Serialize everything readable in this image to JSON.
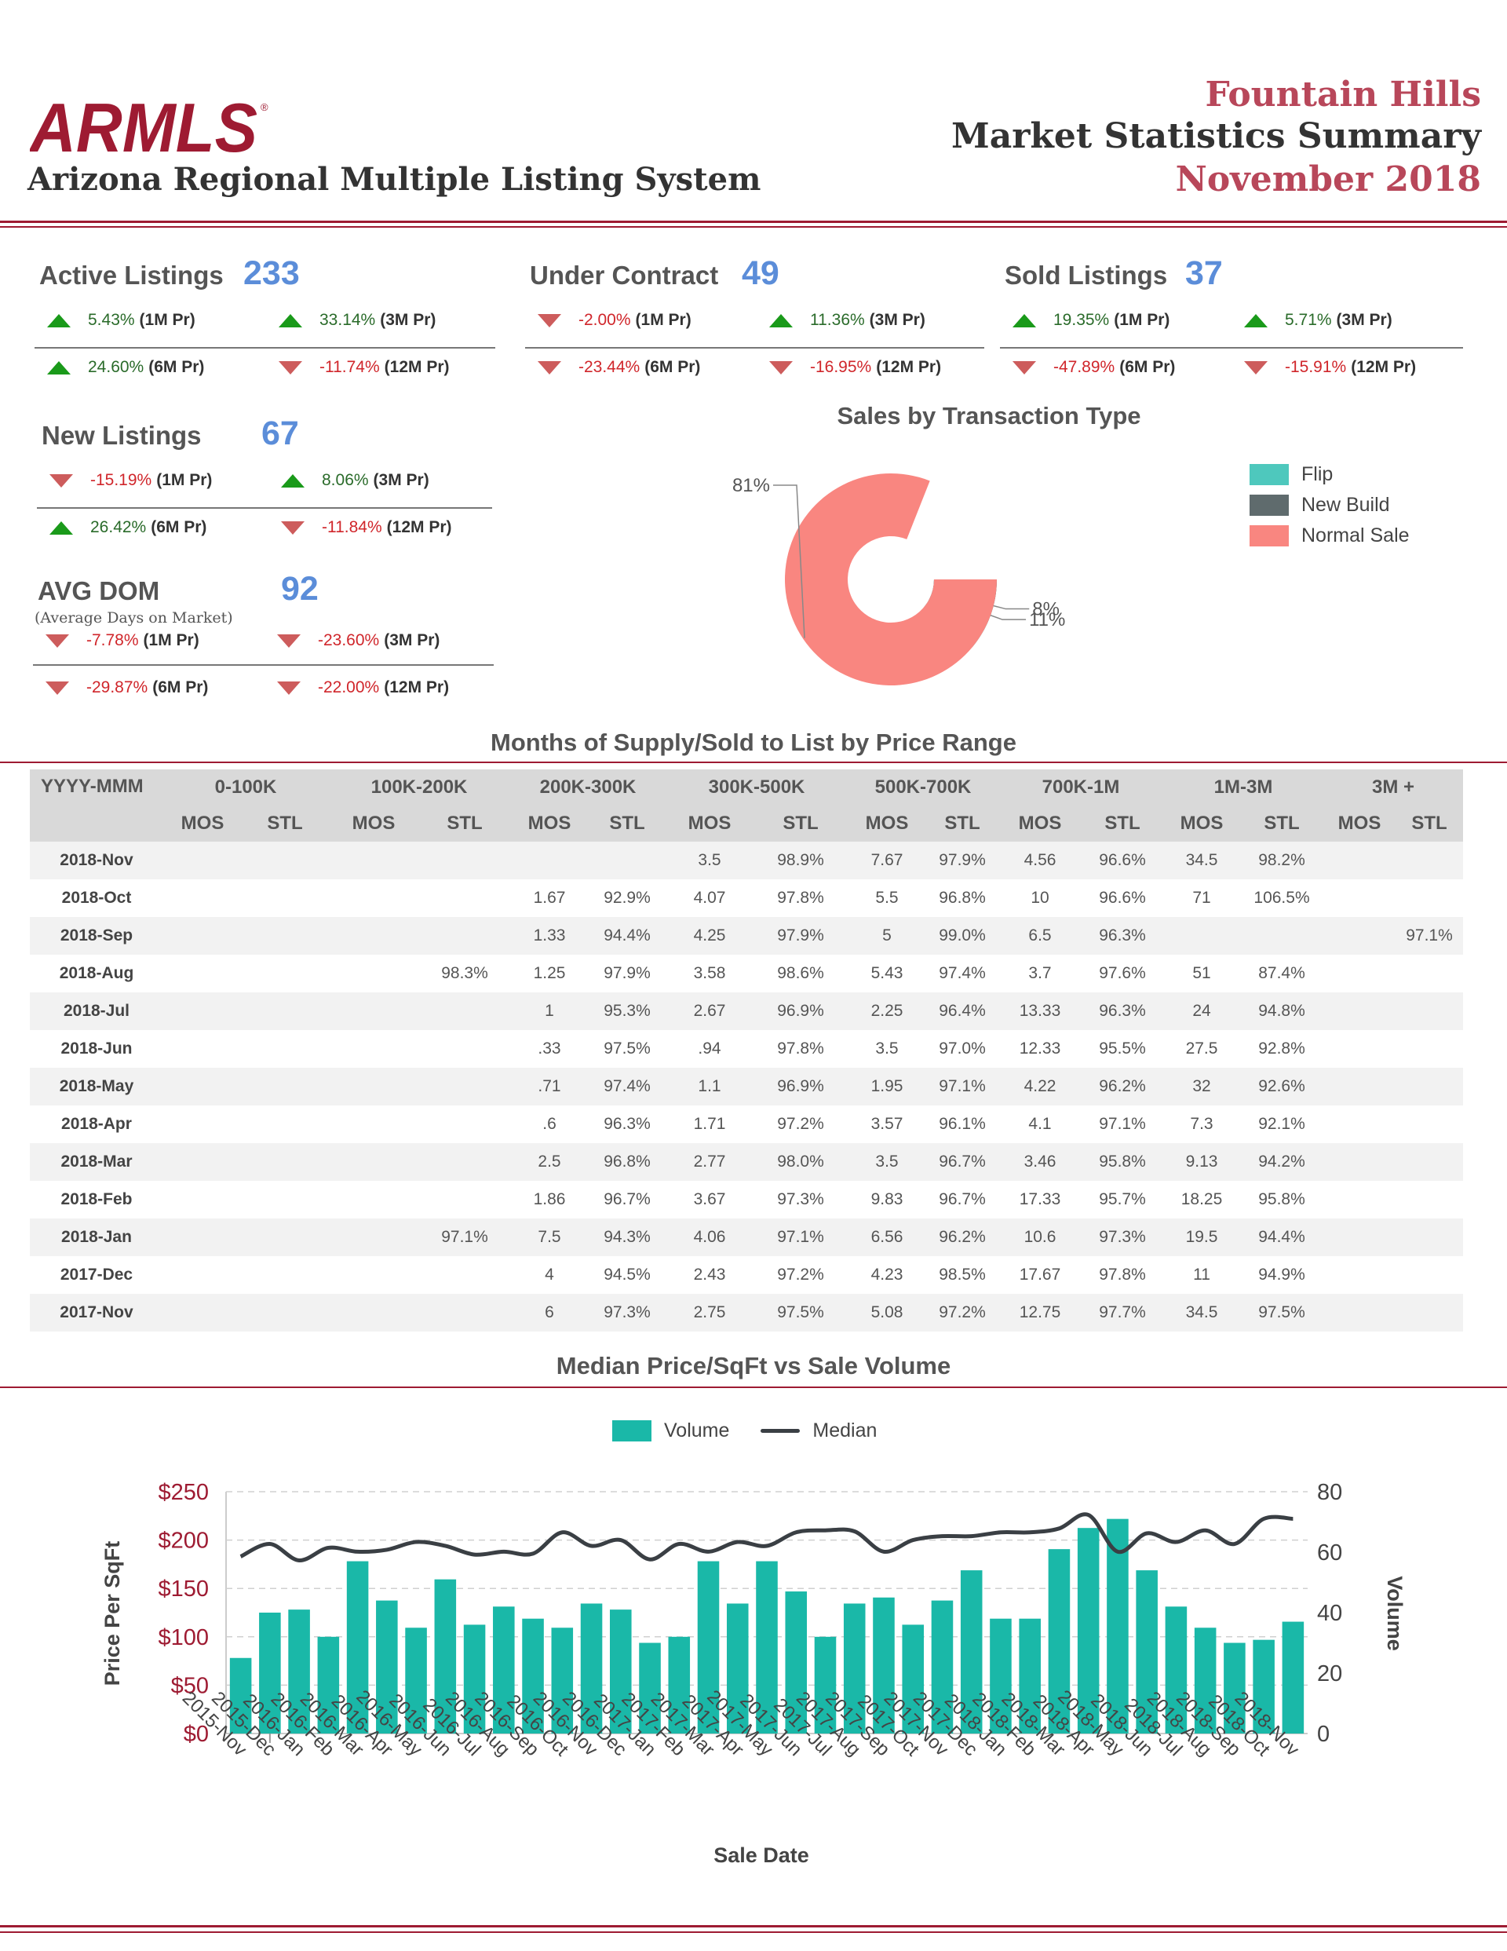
{
  "header": {
    "logo_text": "ARMLS",
    "org_name": "Arizona Regional Multiple Listing System",
    "city": "Fountain Hills",
    "report_title": "Market Statistics Summary",
    "period": "November 2018"
  },
  "kpis": [
    {
      "id": "active",
      "title": "Active Listings",
      "sub": "",
      "value": "233",
      "changes": [
        {
          "dir": "up",
          "pct": "5.43%",
          "period": "(1M Pr)"
        },
        {
          "dir": "up",
          "pct": "33.14%",
          "period": "(3M Pr)"
        },
        {
          "dir": "up",
          "pct": "24.60%",
          "period": "(6M Pr)"
        },
        {
          "dir": "down",
          "pct": "-11.74%",
          "period": "(12M Pr)"
        }
      ]
    },
    {
      "id": "contract",
      "title": "Under Contract",
      "sub": "",
      "value": "49",
      "changes": [
        {
          "dir": "down",
          "pct": "-2.00%",
          "period": "(1M Pr)"
        },
        {
          "dir": "up",
          "pct": "11.36%",
          "period": "(3M Pr)"
        },
        {
          "dir": "down",
          "pct": "-23.44%",
          "period": "(6M Pr)"
        },
        {
          "dir": "down",
          "pct": "-16.95%",
          "period": "(12M Pr)"
        }
      ]
    },
    {
      "id": "sold",
      "title": "Sold Listings",
      "sub": "",
      "value": "37",
      "changes": [
        {
          "dir": "up",
          "pct": "19.35%",
          "period": "(1M Pr)"
        },
        {
          "dir": "up",
          "pct": "5.71%",
          "period": "(3M Pr)"
        },
        {
          "dir": "down",
          "pct": "-47.89%",
          "period": "(6M Pr)"
        },
        {
          "dir": "down",
          "pct": "-15.91%",
          "period": "(12M Pr)"
        }
      ]
    },
    {
      "id": "new",
      "title": "New Listings",
      "sub": "",
      "value": "67",
      "changes": [
        {
          "dir": "down",
          "pct": "-15.19%",
          "period": "(1M Pr)"
        },
        {
          "dir": "up",
          "pct": "8.06%",
          "period": "(3M Pr)"
        },
        {
          "dir": "up",
          "pct": "26.42%",
          "period": "(6M Pr)"
        },
        {
          "dir": "down",
          "pct": "-11.84%",
          "period": "(12M Pr)"
        }
      ]
    },
    {
      "id": "dom",
      "title": "AVG DOM",
      "sub": "(Average Days on Market)",
      "value": "92",
      "changes": [
        {
          "dir": "down",
          "pct": "-7.78%",
          "period": "(1M Pr)"
        },
        {
          "dir": "down",
          "pct": "-23.60%",
          "period": "(3M Pr)"
        },
        {
          "dir": "down",
          "pct": "-29.87%",
          "period": "(6M Pr)"
        },
        {
          "dir": "down",
          "pct": "-22.00%",
          "period": "(12M Pr)"
        }
      ]
    }
  ],
  "chart_data": [
    {
      "type": "pie",
      "title": "Sales by Transaction Type",
      "labels": [
        "Flip",
        "New Build",
        "Normal Sale"
      ],
      "values": [
        11,
        8,
        81
      ],
      "value_labels": [
        "11%",
        "8%",
        "81%"
      ],
      "colors": [
        "#4ec8bd",
        "#5f6b6d",
        "#f98680"
      ],
      "legend_position": "right"
    },
    {
      "type": "bar",
      "title": "Median Price/SqFt vs Sale Volume",
      "xlabel": "Sale Date",
      "ylabel": "Price Per SqFt",
      "y2label": "Volume",
      "categories": [
        "2015-Nov",
        "2015-Dec",
        "2016-Jan",
        "2016-Feb",
        "2016-Mar",
        "2016-Apr",
        "2016-May",
        "2016-Jun",
        "2016-Jul",
        "2016-Aug",
        "2016-Sep",
        "2016-Oct",
        "2016-Nov",
        "2016-Dec",
        "2017-Jan",
        "2017-Feb",
        "2017-Mar",
        "2017-Apr",
        "2017-May",
        "2017-Jun",
        "2017-Jul",
        "2017-Aug",
        "2017-Sep",
        "2017-Oct",
        "2017-Nov",
        "2017-Dec",
        "2018-Jan",
        "2018-Feb",
        "2018-Mar",
        "2018-Apr",
        "2018-May",
        "2018-Jun",
        "2018-Jul",
        "2018-Aug",
        "2018-Sep",
        "2018-Oct",
        "2018-Nov"
      ],
      "series": [
        {
          "name": "Volume",
          "axis": "right",
          "type": "bar",
          "color": "#1ab8a8",
          "values": [
            25,
            40,
            41,
            32,
            57,
            44,
            35,
            51,
            36,
            42,
            38,
            35,
            43,
            41,
            30,
            32,
            57,
            43,
            57,
            47,
            32,
            43,
            45,
            36,
            44,
            54,
            38,
            38,
            61,
            68,
            71,
            54,
            42,
            35,
            30,
            31,
            37
          ]
        },
        {
          "name": "Median",
          "axis": "left",
          "type": "line",
          "color": "#3a3f44",
          "values": [
            183,
            196,
            179,
            192,
            188,
            190,
            198,
            194,
            185,
            188,
            186,
            208,
            194,
            200,
            180,
            196,
            188,
            198,
            194,
            208,
            210,
            209,
            188,
            200,
            204,
            204,
            208,
            208,
            212,
            226,
            188,
            207,
            198,
            210,
            196,
            222,
            222
          ]
        }
      ],
      "y_left": {
        "min": 0,
        "max": 250,
        "ticks": [
          "$0",
          "$50",
          "$100",
          "$150",
          "$200",
          "$250"
        ]
      },
      "y_right": {
        "min": 0,
        "max": 80,
        "ticks": [
          "0",
          "20",
          "40",
          "60",
          "80"
        ]
      },
      "legend_position": "top"
    }
  ],
  "table": {
    "title": "Months of Supply/Sold to List by Price Range",
    "date_header": "YYYY-MMM",
    "ranges": [
      "0-100K",
      "100K-200K",
      "200K-300K",
      "300K-500K",
      "500K-700K",
      "700K-1M",
      "1M-3M",
      "3M +"
    ],
    "sub_headers": [
      "MOS",
      "STL"
    ],
    "rows": [
      {
        "date": "2018-Nov",
        "cells": [
          "",
          "",
          "",
          "",
          "",
          "",
          "3.5",
          "98.9%",
          "7.67",
          "97.9%",
          "4.56",
          "96.6%",
          "34.5",
          "98.2%",
          "",
          ""
        ]
      },
      {
        "date": "2018-Oct",
        "cells": [
          "",
          "",
          "",
          "",
          "1.67",
          "92.9%",
          "4.07",
          "97.8%",
          "5.5",
          "96.8%",
          "10",
          "96.6%",
          "71",
          "106.5%",
          "",
          ""
        ]
      },
      {
        "date": "2018-Sep",
        "cells": [
          "",
          "",
          "",
          "",
          "1.33",
          "94.4%",
          "4.25",
          "97.9%",
          "5",
          "99.0%",
          "6.5",
          "96.3%",
          "",
          "",
          "",
          "97.1%"
        ]
      },
      {
        "date": "2018-Aug",
        "cells": [
          "",
          "",
          "",
          "98.3%",
          "1.25",
          "97.9%",
          "3.58",
          "98.6%",
          "5.43",
          "97.4%",
          "3.7",
          "97.6%",
          "51",
          "87.4%",
          "",
          ""
        ]
      },
      {
        "date": "2018-Jul",
        "cells": [
          "",
          "",
          "",
          "",
          "1",
          "95.3%",
          "2.67",
          "96.9%",
          "2.25",
          "96.4%",
          "13.33",
          "96.3%",
          "24",
          "94.8%",
          "",
          ""
        ]
      },
      {
        "date": "2018-Jun",
        "cells": [
          "",
          "",
          "",
          "",
          ".33",
          "97.5%",
          ".94",
          "97.8%",
          "3.5",
          "97.0%",
          "12.33",
          "95.5%",
          "27.5",
          "92.8%",
          "",
          ""
        ]
      },
      {
        "date": "2018-May",
        "cells": [
          "",
          "",
          "",
          "",
          ".71",
          "97.4%",
          "1.1",
          "96.9%",
          "1.95",
          "97.1%",
          "4.22",
          "96.2%",
          "32",
          "92.6%",
          "",
          ""
        ]
      },
      {
        "date": "2018-Apr",
        "cells": [
          "",
          "",
          "",
          "",
          ".6",
          "96.3%",
          "1.71",
          "97.2%",
          "3.57",
          "96.1%",
          "4.1",
          "97.1%",
          "7.3",
          "92.1%",
          "",
          ""
        ]
      },
      {
        "date": "2018-Mar",
        "cells": [
          "",
          "",
          "",
          "",
          "2.5",
          "96.8%",
          "2.77",
          "98.0%",
          "3.5",
          "96.7%",
          "3.46",
          "95.8%",
          "9.13",
          "94.2%",
          "",
          ""
        ]
      },
      {
        "date": "2018-Feb",
        "cells": [
          "",
          "",
          "",
          "",
          "1.86",
          "96.7%",
          "3.67",
          "97.3%",
          "9.83",
          "96.7%",
          "17.33",
          "95.7%",
          "18.25",
          "95.8%",
          "",
          ""
        ]
      },
      {
        "date": "2018-Jan",
        "cells": [
          "",
          "",
          "",
          "97.1%",
          "7.5",
          "94.3%",
          "4.06",
          "97.1%",
          "6.56",
          "96.2%",
          "10.6",
          "97.3%",
          "19.5",
          "94.4%",
          "",
          ""
        ]
      },
      {
        "date": "2017-Dec",
        "cells": [
          "",
          "",
          "",
          "",
          "4",
          "94.5%",
          "2.43",
          "97.2%",
          "4.23",
          "98.5%",
          "17.67",
          "97.8%",
          "11",
          "94.9%",
          "",
          ""
        ]
      },
      {
        "date": "2017-Nov",
        "cells": [
          "",
          "",
          "",
          "",
          "6",
          "97.3%",
          "2.75",
          "97.5%",
          "5.08",
          "97.2%",
          "12.75",
          "97.7%",
          "34.5",
          "97.5%",
          "",
          ""
        ]
      }
    ]
  }
}
